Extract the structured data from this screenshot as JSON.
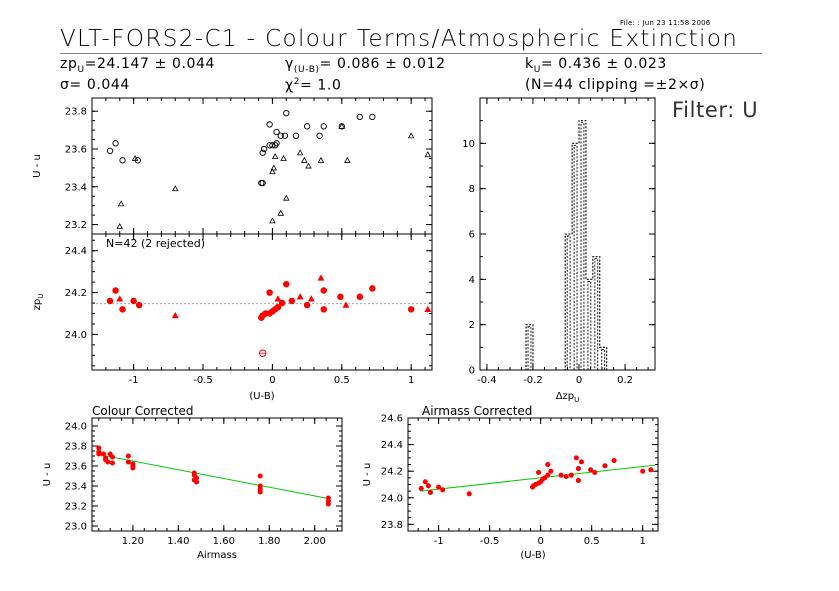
{
  "header": {
    "file_label": "File:",
    "file_value": ": Jun 23 11:58 2006",
    "title": "VLT-FORS2-C1 - Colour Terms/Atmospheric Extinction",
    "zp_label": "zp",
    "zp_sub": "U",
    "zp_value": "=24.147 ± 0.044",
    "sigma_label": "σ=",
    "sigma_value": " 0.044",
    "gamma_label": "γ",
    "gamma_sub": "(U-B)",
    "gamma_value": "= 0.086 ± 0.012",
    "chi_label": "χ",
    "chi_sup": "2",
    "chi_value": "=  1.0",
    "k_label": "k",
    "k_sub": "U",
    "k_value": "= 0.436 ± 0.023",
    "clip_text": "(N=44 clipping =±2×σ)",
    "filter_label": "Filter: U"
  },
  "chart_data": [
    {
      "id": "top-left",
      "type": "scatter",
      "xlabel": "",
      "ylabel": "U - u",
      "xlim": [
        -1.3,
        1.15
      ],
      "ylim": [
        23.15,
        23.87
      ],
      "yticks": [
        23.2,
        23.4,
        23.6,
        23.8
      ],
      "ytick_labels": [
        "23.2",
        "23.4",
        "23.6",
        "23.8"
      ],
      "marker_color": "#000000",
      "points": [
        {
          "x": -1.17,
          "y": 23.59,
          "m": "circle"
        },
        {
          "x": -1.13,
          "y": 23.63,
          "m": "circle"
        },
        {
          "x": -1.08,
          "y": 23.54,
          "m": "circle"
        },
        {
          "x": -0.97,
          "y": 23.54,
          "m": "circle"
        },
        {
          "x": -0.99,
          "y": 23.55,
          "m": "triangle"
        },
        {
          "x": -1.09,
          "y": 23.31,
          "m": "triangle"
        },
        {
          "x": -1.1,
          "y": 23.19,
          "m": "triangle"
        },
        {
          "x": -0.7,
          "y": 23.39,
          "m": "triangle"
        },
        {
          "x": -0.08,
          "y": 23.42,
          "m": "circle"
        },
        {
          "x": -0.07,
          "y": 23.42,
          "m": "circle"
        },
        {
          "x": -0.07,
          "y": 23.58,
          "m": "circle"
        },
        {
          "x": -0.06,
          "y": 23.6,
          "m": "circle"
        },
        {
          "x": -0.02,
          "y": 23.62,
          "m": "circle"
        },
        {
          "x": 0.0,
          "y": 23.62,
          "m": "circle"
        },
        {
          "x": 0.02,
          "y": 23.62,
          "m": "circle"
        },
        {
          "x": 0.03,
          "y": 23.63,
          "m": "circle"
        },
        {
          "x": 0.06,
          "y": 23.67,
          "m": "circle"
        },
        {
          "x": 0.09,
          "y": 23.67,
          "m": "circle"
        },
        {
          "x": 0.1,
          "y": 23.79,
          "m": "circle"
        },
        {
          "x": -0.02,
          "y": 23.73,
          "m": "circle"
        },
        {
          "x": 0.03,
          "y": 23.69,
          "m": "circle"
        },
        {
          "x": 0.17,
          "y": 23.67,
          "m": "circle"
        },
        {
          "x": 0.25,
          "y": 23.72,
          "m": "circle"
        },
        {
          "x": 0.34,
          "y": 23.67,
          "m": "circle"
        },
        {
          "x": 0.37,
          "y": 23.72,
          "m": "circle"
        },
        {
          "x": 0.5,
          "y": 23.72,
          "m": "circle"
        },
        {
          "x": 0.63,
          "y": 23.77,
          "m": "circle"
        },
        {
          "x": 0.72,
          "y": 23.77,
          "m": "circle"
        },
        {
          "x": 0.0,
          "y": 23.22,
          "m": "triangle"
        },
        {
          "x": 0.06,
          "y": 23.26,
          "m": "triangle"
        },
        {
          "x": 0.1,
          "y": 23.34,
          "m": "triangle"
        },
        {
          "x": 0.0,
          "y": 23.48,
          "m": "triangle"
        },
        {
          "x": 0.01,
          "y": 23.5,
          "m": "triangle"
        },
        {
          "x": 0.02,
          "y": 23.56,
          "m": "triangle"
        },
        {
          "x": 0.08,
          "y": 23.55,
          "m": "triangle"
        },
        {
          "x": 0.2,
          "y": 23.58,
          "m": "triangle"
        },
        {
          "x": 0.23,
          "y": 23.54,
          "m": "triangle"
        },
        {
          "x": 0.26,
          "y": 23.51,
          "m": "triangle"
        },
        {
          "x": 0.35,
          "y": 23.54,
          "m": "triangle"
        },
        {
          "x": 0.54,
          "y": 23.54,
          "m": "triangle"
        },
        {
          "x": 0.5,
          "y": 23.72,
          "m": "triangle"
        },
        {
          "x": 1.0,
          "y": 23.67,
          "m": "triangle"
        },
        {
          "x": 1.12,
          "y": 23.57,
          "m": "triangle"
        }
      ]
    },
    {
      "id": "mid-left",
      "type": "scatter",
      "annotation": "N=42 (2 rejected)",
      "xlabel": "(U-B)",
      "ylabel": "zp_U",
      "xlim": [
        -1.3,
        1.15
      ],
      "ylim": [
        23.83,
        24.48
      ],
      "xticks": [
        -1.0,
        -0.5,
        0.0,
        0.5,
        1.0
      ],
      "xtick_labels": [
        "-1",
        "-0.5",
        "0",
        "0.5",
        "1"
      ],
      "yticks": [
        24.0,
        24.2,
        24.4
      ],
      "ytick_labels": [
        "24.0",
        "24.2",
        "24.4"
      ],
      "ref_line": 24.147,
      "marker_color": "#ff0000",
      "points": [
        {
          "x": -1.17,
          "y": 24.16,
          "m": "circle"
        },
        {
          "x": -1.13,
          "y": 24.21,
          "m": "circle"
        },
        {
          "x": -1.1,
          "y": 24.17,
          "m": "triangle"
        },
        {
          "x": -1.08,
          "y": 24.12,
          "m": "circle"
        },
        {
          "x": -1.0,
          "y": 24.16,
          "m": "circle"
        },
        {
          "x": -0.96,
          "y": 24.14,
          "m": "circle"
        },
        {
          "x": -0.7,
          "y": 24.09,
          "m": "triangle"
        },
        {
          "x": -0.08,
          "y": 24.08,
          "m": "circle"
        },
        {
          "x": -0.07,
          "y": 24.09,
          "m": "circle"
        },
        {
          "x": -0.05,
          "y": 24.1,
          "m": "circle"
        },
        {
          "x": -0.02,
          "y": 24.1,
          "m": "circle"
        },
        {
          "x": 0.0,
          "y": 24.11,
          "m": "circle"
        },
        {
          "x": 0.02,
          "y": 24.12,
          "m": "circle"
        },
        {
          "x": 0.04,
          "y": 24.13,
          "m": "circle"
        },
        {
          "x": 0.07,
          "y": 24.15,
          "m": "circle"
        },
        {
          "x": 0.1,
          "y": 24.24,
          "m": "circle"
        },
        {
          "x": 0.14,
          "y": 24.16,
          "m": "circle"
        },
        {
          "x": -0.02,
          "y": 24.2,
          "m": "circle"
        },
        {
          "x": 0.04,
          "y": 24.17,
          "m": "triangle"
        },
        {
          "x": 0.2,
          "y": 24.18,
          "m": "triangle"
        },
        {
          "x": 0.25,
          "y": 24.14,
          "m": "circle"
        },
        {
          "x": 0.28,
          "y": 24.17,
          "m": "triangle"
        },
        {
          "x": 0.35,
          "y": 24.27,
          "m": "triangle"
        },
        {
          "x": 0.37,
          "y": 24.21,
          "m": "circle"
        },
        {
          "x": 0.37,
          "y": 24.12,
          "m": "circle"
        },
        {
          "x": 0.49,
          "y": 24.18,
          "m": "circle"
        },
        {
          "x": 0.53,
          "y": 24.14,
          "m": "triangle"
        },
        {
          "x": 0.63,
          "y": 24.18,
          "m": "circle"
        },
        {
          "x": 0.72,
          "y": 24.22,
          "m": "circle"
        },
        {
          "x": 1.0,
          "y": 24.12,
          "m": "circle"
        },
        {
          "x": 1.12,
          "y": 24.12,
          "m": "triangle"
        },
        {
          "x": -0.07,
          "y": 23.91,
          "m": "rejected"
        }
      ]
    },
    {
      "id": "histogram",
      "type": "histogram",
      "xlabel": "Δzp_U",
      "xlim": [
        -0.43,
        0.33
      ],
      "ylim": [
        0,
        12
      ],
      "xticks": [
        -0.4,
        -0.2,
        0.0,
        0.2
      ],
      "xtick_labels": [
        "-0.4",
        "-0.2",
        "0",
        "0.2"
      ],
      "yticks": [
        0,
        2,
        4,
        6,
        8,
        10
      ],
      "ytick_labels": [
        "0",
        "2",
        "4",
        "6",
        "8",
        "10"
      ],
      "bin_edges": [
        -0.43,
        -0.23,
        -0.2,
        -0.06,
        -0.03,
        0.0,
        0.03,
        0.06,
        0.09,
        0.12,
        0.33
      ],
      "counts": [
        0,
        2,
        0,
        6,
        10,
        11,
        4,
        5,
        1,
        0
      ]
    },
    {
      "id": "colour-corrected",
      "type": "scatter",
      "title": "Colour Corrected",
      "xlabel": "Airmass",
      "ylabel": "U - u",
      "xlim": [
        1.02,
        2.12
      ],
      "ylim": [
        22.95,
        24.08
      ],
      "xticks": [
        1.2,
        1.4,
        1.6,
        1.8,
        2.0
      ],
      "xtick_labels": [
        "1.20",
        "1.40",
        "1.60",
        "1.80",
        "2.00"
      ],
      "yticks": [
        23.0,
        23.2,
        23.4,
        23.6,
        23.8,
        24.0
      ],
      "ytick_labels": [
        "23.0",
        "23.2",
        "23.4",
        "23.6",
        "23.8",
        "24.0"
      ],
      "fit_line": {
        "x": [
          1.05,
          2.07
        ],
        "y": [
          23.715,
          23.27
        ]
      },
      "fit_color": "#00cc00",
      "marker_color": "#ff0000",
      "points": [
        {
          "x": 1.05,
          "y": 23.78
        },
        {
          "x": 1.05,
          "y": 23.74
        },
        {
          "x": 1.05,
          "y": 23.72
        },
        {
          "x": 1.07,
          "y": 23.72
        },
        {
          "x": 1.08,
          "y": 23.68
        },
        {
          "x": 1.08,
          "y": 23.66
        },
        {
          "x": 1.09,
          "y": 23.64
        },
        {
          "x": 1.1,
          "y": 23.72
        },
        {
          "x": 1.11,
          "y": 23.69
        },
        {
          "x": 1.11,
          "y": 23.63
        },
        {
          "x": 1.18,
          "y": 23.7
        },
        {
          "x": 1.18,
          "y": 23.64
        },
        {
          "x": 1.2,
          "y": 23.62
        },
        {
          "x": 1.2,
          "y": 23.6
        },
        {
          "x": 1.2,
          "y": 23.58
        },
        {
          "x": 1.47,
          "y": 23.53
        },
        {
          "x": 1.47,
          "y": 23.51
        },
        {
          "x": 1.48,
          "y": 23.48
        },
        {
          "x": 1.47,
          "y": 23.46
        },
        {
          "x": 1.48,
          "y": 23.44
        },
        {
          "x": 1.76,
          "y": 23.5
        },
        {
          "x": 1.76,
          "y": 23.4
        },
        {
          "x": 1.76,
          "y": 23.37
        },
        {
          "x": 1.76,
          "y": 23.34
        },
        {
          "x": 2.06,
          "y": 23.28
        },
        {
          "x": 2.06,
          "y": 23.25
        },
        {
          "x": 2.06,
          "y": 23.22
        }
      ]
    },
    {
      "id": "airmass-corrected",
      "type": "scatter",
      "title": "Airmass Corrected",
      "xlabel": "(U-B)",
      "ylabel": "U - u",
      "xlim": [
        -1.3,
        1.15
      ],
      "ylim": [
        23.75,
        24.6
      ],
      "xticks": [
        -1.0,
        -0.5,
        0.0,
        0.5,
        1.0
      ],
      "xtick_labels": [
        "-1",
        "-0.5",
        "0",
        "0.5",
        "1"
      ],
      "yticks": [
        23.8,
        24.0,
        24.2,
        24.4,
        24.6
      ],
      "ytick_labels": [
        "23.8",
        "24.0",
        "24.2",
        "24.4",
        "24.6"
      ],
      "fit_line": {
        "x": [
          -1.18,
          1.12
        ],
        "y": [
          24.05,
          24.245
        ]
      },
      "fit_color": "#00cc00",
      "marker_color": "#ff0000",
      "points": [
        {
          "x": -1.17,
          "y": 24.07
        },
        {
          "x": -1.13,
          "y": 24.12
        },
        {
          "x": -1.1,
          "y": 24.09
        },
        {
          "x": -1.08,
          "y": 24.04
        },
        {
          "x": -1.0,
          "y": 24.08
        },
        {
          "x": -0.96,
          "y": 24.06
        },
        {
          "x": -0.7,
          "y": 24.03
        },
        {
          "x": -0.08,
          "y": 24.08
        },
        {
          "x": -0.07,
          "y": 24.09
        },
        {
          "x": -0.05,
          "y": 24.1
        },
        {
          "x": -0.02,
          "y": 24.11
        },
        {
          "x": 0.0,
          "y": 24.12
        },
        {
          "x": 0.02,
          "y": 24.14
        },
        {
          "x": 0.04,
          "y": 24.15
        },
        {
          "x": 0.07,
          "y": 24.17
        },
        {
          "x": 0.07,
          "y": 24.25
        },
        {
          "x": 0.1,
          "y": 24.2
        },
        {
          "x": -0.02,
          "y": 24.19
        },
        {
          "x": 0.2,
          "y": 24.17
        },
        {
          "x": 0.25,
          "y": 24.16
        },
        {
          "x": 0.3,
          "y": 24.17
        },
        {
          "x": 0.35,
          "y": 24.3
        },
        {
          "x": 0.37,
          "y": 24.22
        },
        {
          "x": 0.37,
          "y": 24.13
        },
        {
          "x": 0.4,
          "y": 24.27
        },
        {
          "x": 0.49,
          "y": 24.21
        },
        {
          "x": 0.53,
          "y": 24.19
        },
        {
          "x": 0.63,
          "y": 24.24
        },
        {
          "x": 0.72,
          "y": 24.28
        },
        {
          "x": 1.0,
          "y": 24.2
        },
        {
          "x": 1.08,
          "y": 24.21
        }
      ]
    }
  ]
}
